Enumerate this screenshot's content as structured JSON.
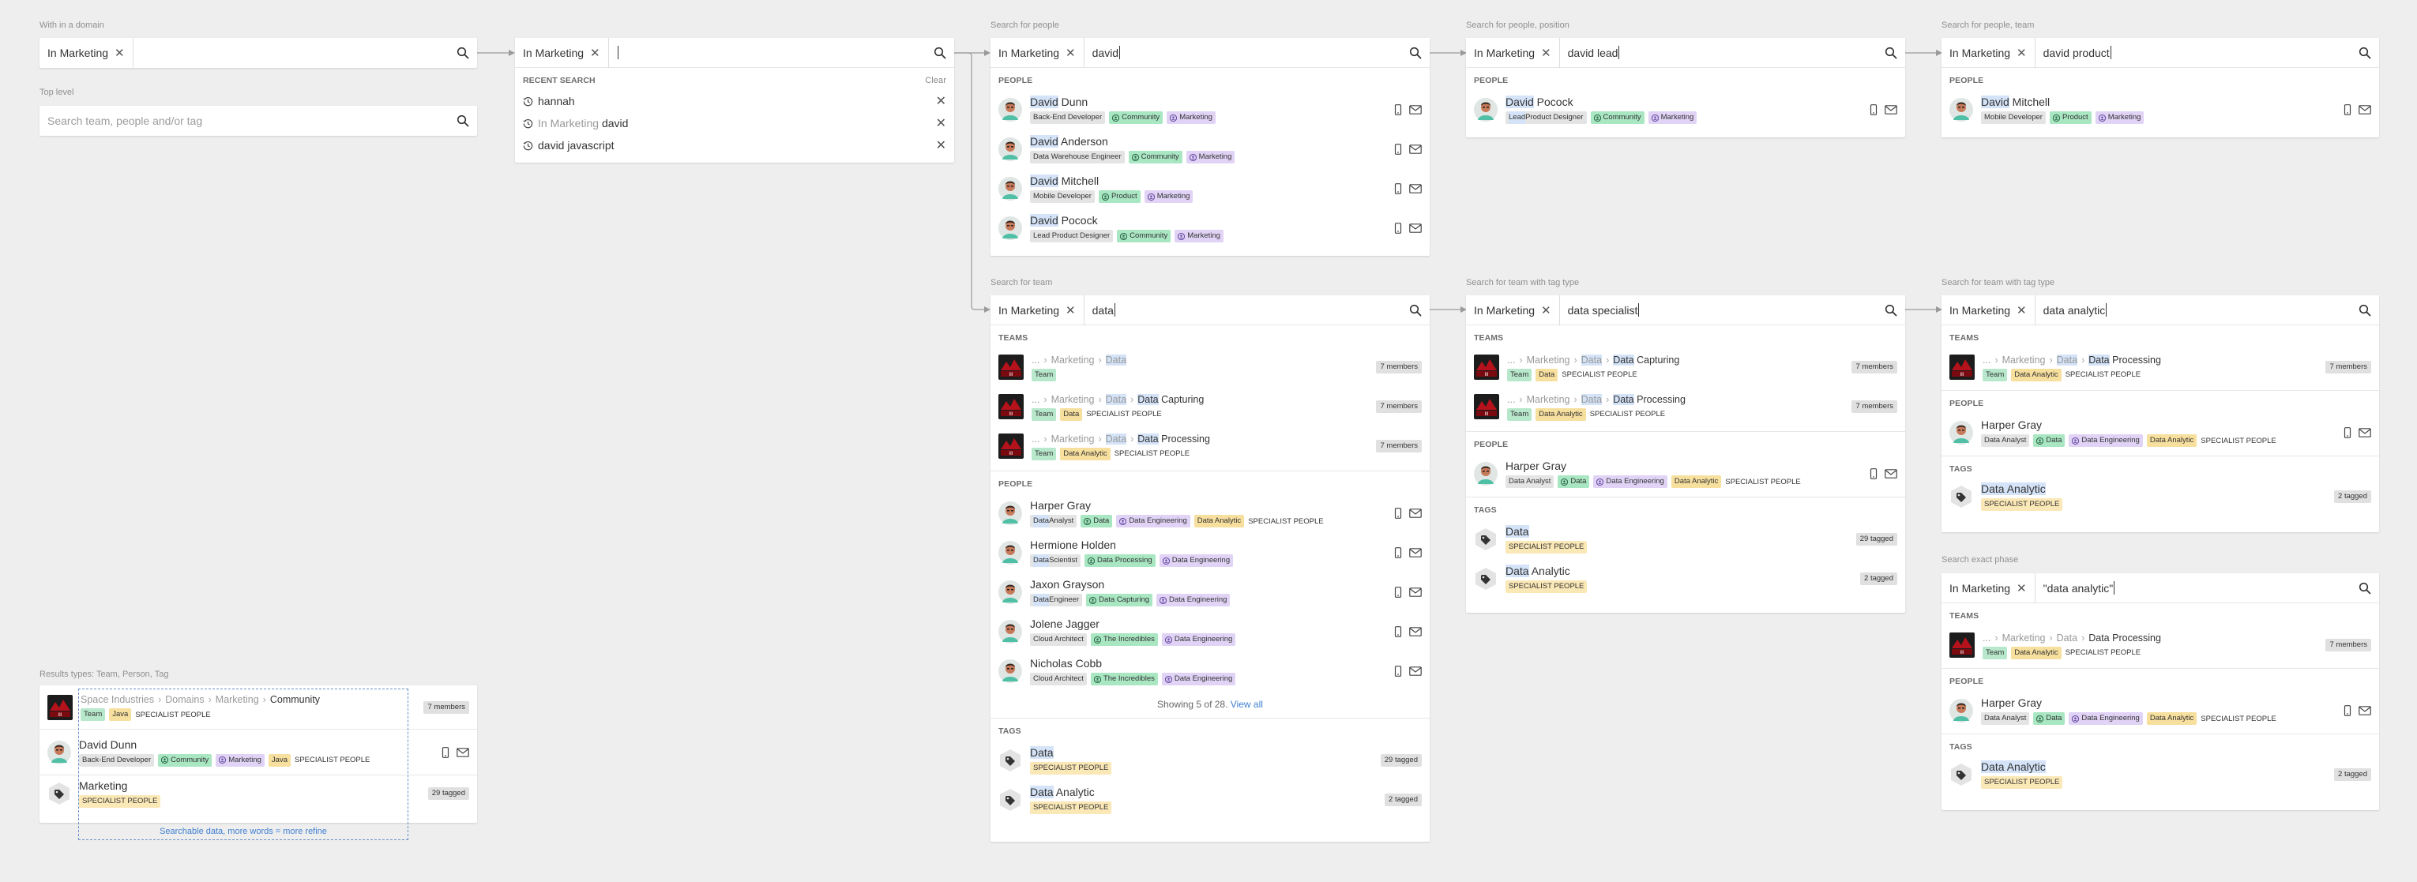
{
  "captions": {
    "c1": "With in a domain",
    "c2": "Top level",
    "c3": "Search for people",
    "c4": "Search for people, position",
    "c5": "Search for people, team",
    "c6": "Search for team",
    "c7": "Search for team with tag type",
    "c8": "Search for team with tag type",
    "c9": "Search exact phase",
    "c10": "Results types: Team, Person, Tag"
  },
  "domain_chip": "In Marketing",
  "clear_label": "Clear",
  "search1": {
    "query": ""
  },
  "search2": {
    "placeholder": "Search team, people and/or tag"
  },
  "recent": {
    "header": "RECENT SEARCH",
    "items": [
      {
        "text": "hannah"
      },
      {
        "prefix": "In Marketing",
        "text": "david"
      },
      {
        "text": "david javascript"
      }
    ]
  },
  "sections": {
    "people": "PEOPLE",
    "teams": "TEAMS",
    "tags": "TAGS"
  },
  "specialist": "SPECIALIST PEOPLE",
  "p1": {
    "q": "david",
    "rows": [
      {
        "first": "David",
        "rest": " Dunn",
        "pos": "Back-End Developer",
        "t1": "Community",
        "t2": "Marketing"
      },
      {
        "first": "David",
        "rest": " Anderson",
        "pos": "Data Warehouse Engineer",
        "t1": "Community",
        "t2": "Marketing"
      },
      {
        "first": "David",
        "rest": " Mitchell",
        "pos": "Mobile Developer",
        "t1": "Product",
        "t2": "Marketing"
      },
      {
        "first": "David",
        "rest": " Pocock",
        "pos": "Lead Product Designer",
        "t1": "Community",
        "t2": "Marketing"
      }
    ]
  },
  "p2": {
    "q": "david lead",
    "row": {
      "first": "David",
      "rest": " Pocock",
      "pos_hl": "Lead",
      "pos_rest": " Product Designer",
      "t1": "Community",
      "t2": "Marketing"
    }
  },
  "p3": {
    "q": "david product",
    "row": {
      "first": "David",
      "rest": " Mitchell",
      "pos": "Mobile Developer",
      "t1": "Product",
      "t2": "Marketing"
    }
  },
  "t1": {
    "q": "data",
    "teams": [
      {
        "path": "... > Marketing > ",
        "a": "Data",
        "b": "",
        "c": "",
        "tag": "Team",
        "t2": "",
        "members": "7 members"
      },
      {
        "path": "... > Marketing > ",
        "a": "Data",
        "b": " > ",
        "c": "Data",
        "d": " Capturing",
        "tag": "Team",
        "t2": "Data",
        "members": "7 members"
      },
      {
        "path": "... > Marketing > ",
        "a": "Data",
        "b": " > ",
        "c": "Data",
        "d": " Processing",
        "tag": "Team",
        "t2": "Data Analytic",
        "members": "7 members"
      }
    ],
    "people": [
      {
        "name": "Harper Gray",
        "pos": "Data Analyst",
        "a": "Data",
        "b": "Data Engineering",
        "c": "Data Analytic"
      },
      {
        "name": "Hermione Holden",
        "pos": "Data Scientist",
        "a": "Data Processing",
        "b": "Data Engineering"
      },
      {
        "name": "Jaxon Grayson",
        "pos": "Data Engineer",
        "a": "Data Capturing",
        "b": "Data Engineering"
      },
      {
        "name": "Jolene Jagger",
        "pos": "Cloud Architect",
        "a": "The Incredibles",
        "b": "Data Engineering"
      },
      {
        "name": "Nicholas Cobb",
        "pos": "Cloud Architect",
        "a": "The Incredibles",
        "b": "Data Engineering"
      }
    ],
    "showing": "Showing 5 of 28.",
    "viewall": "View all",
    "tags": [
      {
        "a": "Data",
        "b": "",
        "count": "29 tagged"
      },
      {
        "a": "Data",
        "b": " Analytic",
        "count": "2 tagged"
      }
    ]
  },
  "t2": {
    "q": "data specialist",
    "teams": [
      {
        "d": " Capturing",
        "t2": "Data",
        "members": "7 members"
      },
      {
        "d": " Processing",
        "t2": "Data Analytic",
        "members": "7 members"
      }
    ],
    "person": {
      "name": "Harper Gray",
      "pos": "Data Analyst",
      "a": "Data",
      "b": "Data Engineering",
      "c": "Data Analytic"
    },
    "tags": [
      {
        "a": "Data",
        "b": "",
        "count": "29 tagged"
      },
      {
        "a": "Data",
        "b": " Analytic",
        "count": "2 tagged"
      }
    ]
  },
  "t3": {
    "q": "data analytic",
    "team": {
      "d": " Processing",
      "t2": "Data Analytic",
      "members": "7 members"
    },
    "person": {
      "name": "Harper Gray",
      "pos": "Data Analyst",
      "a": "Data",
      "b": "Data Engineering",
      "c": "Data Analytic"
    },
    "tag": {
      "name": "Data Analytic",
      "count": "2 tagged"
    }
  },
  "t4": {
    "q": "\"data analytic\"",
    "team": {
      "path": "... > Marketing > Data > Data Processing",
      "t2": "Data Analytic",
      "members": "7 members"
    },
    "person": {
      "name": "Harper Gray",
      "pos": "Data Analyst",
      "a": "Data",
      "b": "Data Engineering",
      "c": "Data Analytic"
    },
    "tag": {
      "name": "Data Analytic",
      "count": "2 tagged"
    }
  },
  "types": {
    "team": {
      "path": "Space Industries > Domains > Marketing > ",
      "cur": "Community",
      "tag": "Team",
      "t2": "Java",
      "members": "7 members"
    },
    "person": {
      "name": "David Dunn",
      "pos": "Back-End Developer",
      "t1": "Community",
      "t2": "Marketing",
      "t3": "Java"
    },
    "tag": {
      "name": "Marketing",
      "count": "29 tagged"
    },
    "note": "Searchable data, more words = more refine"
  },
  "colors": {
    "bg": "#eeeeee",
    "highlight": "#d4e3f7",
    "link": "#3f7fd0",
    "team_tag": "#b8e8cc",
    "purple_tag": "#e0d3f5",
    "yellow_tag": "#f7df9e"
  }
}
